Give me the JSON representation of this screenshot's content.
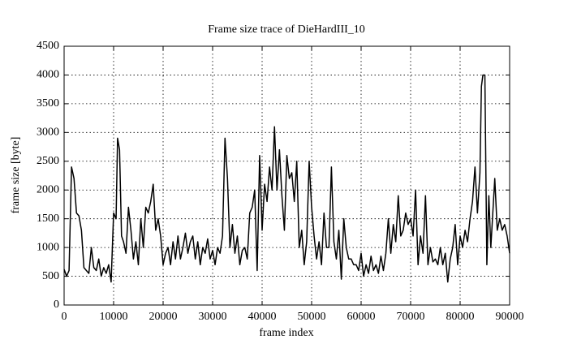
{
  "chart_data": {
    "type": "line",
    "title": "Frame size trace of DieHardIII_10",
    "x_label": "frame index",
    "y_label": "frame size [byte]",
    "xlim": [
      0,
      90000
    ],
    "ylim": [
      0,
      4500
    ],
    "xticks": [
      0,
      10000,
      20000,
      30000,
      40000,
      50000,
      60000,
      70000,
      80000,
      90000
    ],
    "yticks": [
      0,
      500,
      1000,
      1500,
      2000,
      2500,
      3000,
      3500,
      4000,
      4500
    ],
    "grid": true,
    "x": [
      0,
      500,
      1000,
      1500,
      2000,
      2500,
      3000,
      3500,
      4000,
      4500,
      5000,
      5500,
      6000,
      6500,
      7000,
      7500,
      8000,
      8500,
      9000,
      9500,
      10000,
      10500,
      10800,
      11200,
      11600,
      12000,
      12500,
      13000,
      13500,
      14000,
      14500,
      15000,
      15500,
      16000,
      16500,
      17000,
      17500,
      18000,
      18500,
      19000,
      19500,
      20000,
      20500,
      21000,
      21500,
      22000,
      22500,
      23000,
      23500,
      24000,
      24500,
      25000,
      25500,
      26000,
      26500,
      27000,
      27500,
      28000,
      28500,
      29000,
      29500,
      30000,
      30500,
      31000,
      31500,
      32000,
      32500,
      33000,
      33500,
      34000,
      34500,
      35000,
      35500,
      36000,
      36500,
      37000,
      37500,
      38000,
      38500,
      39000,
      39500,
      40000,
      40500,
      41000,
      41500,
      42000,
      42500,
      43000,
      43500,
      44000,
      44500,
      45000,
      45500,
      46000,
      46500,
      47000,
      47500,
      48000,
      48500,
      49000,
      49500,
      50000,
      50500,
      51000,
      51500,
      52000,
      52500,
      53000,
      53500,
      54000,
      54500,
      55000,
      55500,
      56000,
      56500,
      57000,
      57500,
      58000,
      58500,
      59000,
      59500,
      60000,
      60500,
      61000,
      61500,
      62000,
      62500,
      63000,
      63500,
      64000,
      64500,
      65000,
      65500,
      66000,
      66500,
      67000,
      67500,
      68000,
      68500,
      69000,
      69500,
      70000,
      70500,
      71000,
      71500,
      72000,
      72500,
      73000,
      73500,
      74000,
      74500,
      75000,
      75500,
      76000,
      76500,
      77000,
      77500,
      78000,
      78500,
      79000,
      79500,
      80000,
      80500,
      81000,
      81500,
      82000,
      82500,
      83000,
      83500,
      84000,
      84300,
      84600,
      85000,
      85400,
      85800,
      86200,
      86600,
      87000,
      87500,
      88000,
      88500,
      89000,
      89500,
      90000
    ],
    "series": [
      {
        "name": "frame size",
        "color": "#000000",
        "values": [
          620,
          500,
          600,
          2400,
          2200,
          1600,
          1550,
          1300,
          650,
          600,
          550,
          1000,
          650,
          600,
          800,
          500,
          650,
          550,
          700,
          400,
          1600,
          1500,
          2900,
          2700,
          1200,
          1100,
          900,
          1700,
          1300,
          800,
          1100,
          700,
          1500,
          1000,
          1700,
          1600,
          1800,
          2100,
          1300,
          1500,
          1200,
          700,
          900,
          1000,
          700,
          1100,
          800,
          1200,
          800,
          1000,
          1250,
          900,
          1100,
          1200,
          800,
          1100,
          700,
          1000,
          900,
          1150,
          800,
          950,
          700,
          1000,
          900,
          1200,
          2900,
          2200,
          1000,
          1400,
          900,
          1200,
          700,
          950,
          1000,
          800,
          1600,
          1700,
          2000,
          600,
          2600,
          1300,
          2100,
          1800,
          2400,
          2000,
          3100,
          2000,
          2700,
          1900,
          1300,
          2600,
          2200,
          2300,
          1800,
          2500,
          1000,
          1300,
          700,
          1100,
          2500,
          1700,
          1200,
          800,
          1100,
          700,
          1600,
          1000,
          1000,
          2400,
          1100,
          800,
          1300,
          450,
          1500,
          1000,
          800,
          800,
          700,
          700,
          600,
          900,
          500,
          700,
          550,
          850,
          600,
          700,
          550,
          850,
          600,
          900,
          1500,
          900,
          1400,
          1100,
          1900,
          1200,
          1300,
          1600,
          1400,
          1500,
          1200,
          2000,
          700,
          1200,
          900,
          1900,
          700,
          1000,
          750,
          800,
          700,
          1000,
          700,
          900,
          400,
          800,
          1000,
          1400,
          700,
          1200,
          1000,
          1300,
          1100,
          1500,
          1800,
          2400,
          1600,
          2300,
          3800,
          4000,
          4000,
          700,
          1900,
          1000,
          1600,
          2200,
          1300,
          1500,
          1300,
          1400,
          1200,
          900
        ]
      }
    ]
  }
}
